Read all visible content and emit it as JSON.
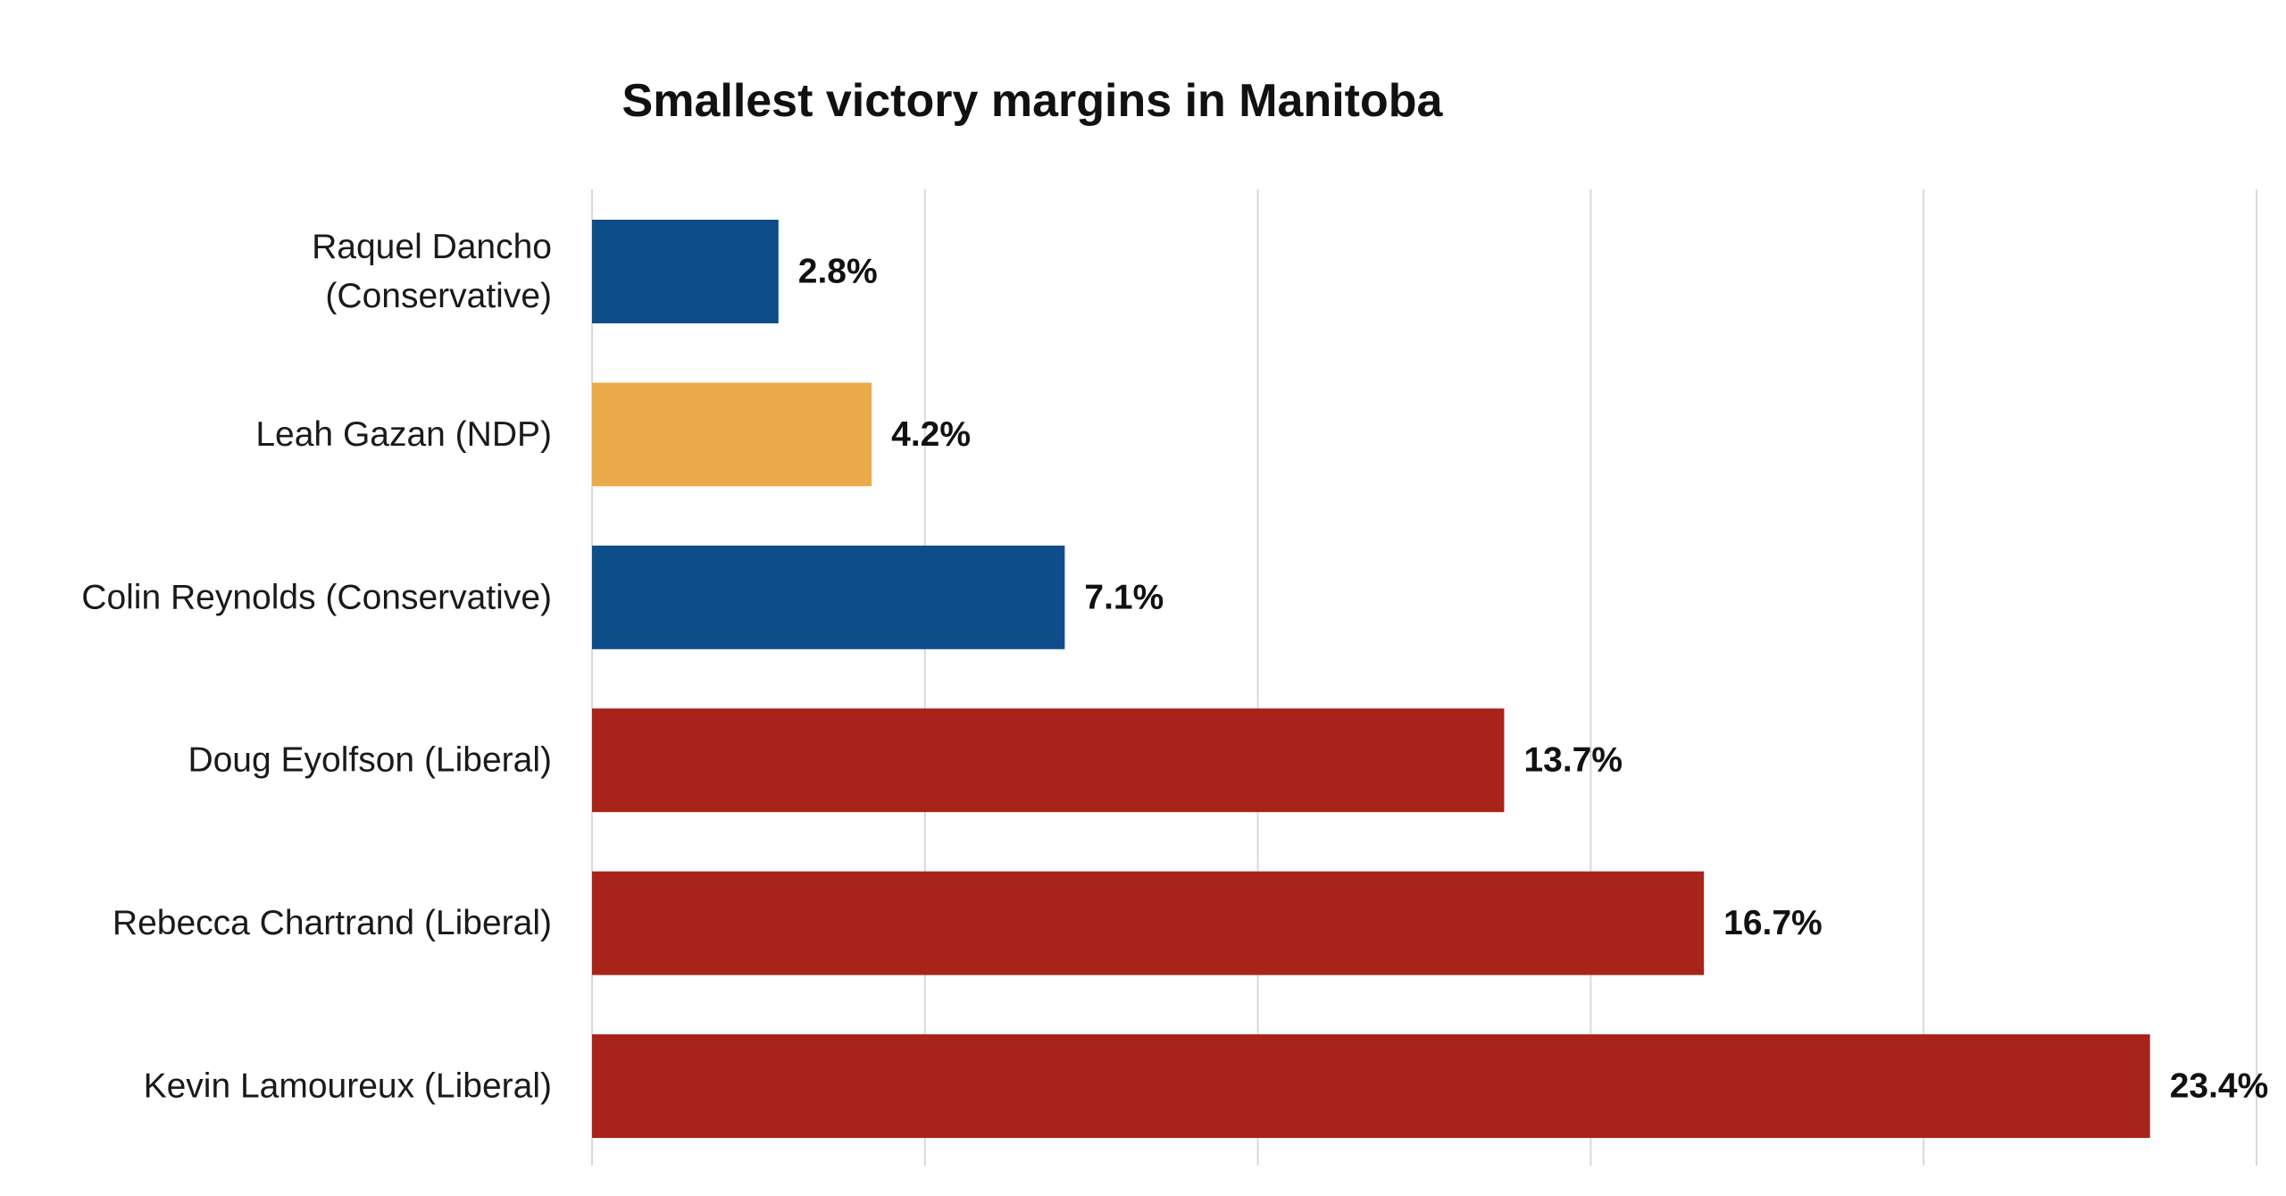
{
  "chart_data": {
    "type": "bar",
    "orientation": "horizontal",
    "title": "Smallest victory margins in Manitoba",
    "categories": [
      "Raquel Dancho (Conservative)",
      "Leah Gazan (NDP)",
      "Colin Reynolds (Conservative)",
      "Doug Eyolfson (Liberal)",
      "Rebecca Chartrand (Liberal)",
      "Kevin Lamoureux (Liberal)"
    ],
    "category_lines": [
      [
        "Raquel Dancho",
        "(Conservative)"
      ],
      [
        "Leah Gazan (NDP)"
      ],
      [
        "Colin Reynolds (Conservative)"
      ],
      [
        "Doug Eyolfson (Liberal)"
      ],
      [
        "Rebecca Chartrand (Liberal)"
      ],
      [
        "Kevin Lamoureux (Liberal)"
      ]
    ],
    "values": [
      2.8,
      4.2,
      7.1,
      13.7,
      16.7,
      23.4
    ],
    "value_labels": [
      "2.8%",
      "4.2%",
      "7.1%",
      "13.7%",
      "16.7%",
      "23.4%"
    ],
    "bar_colors": [
      "#0f4c8a",
      "#ebab4b",
      "#0f4c8a",
      "#a82319",
      "#a82319",
      "#a82319"
    ],
    "xlim": [
      0,
      25
    ],
    "x_gridlines": [
      0,
      5,
      10,
      15,
      20,
      25
    ],
    "grid": "vertical",
    "xlabel": "",
    "ylabel": "",
    "x_tick_labels_shown": false,
    "legend": "none"
  }
}
